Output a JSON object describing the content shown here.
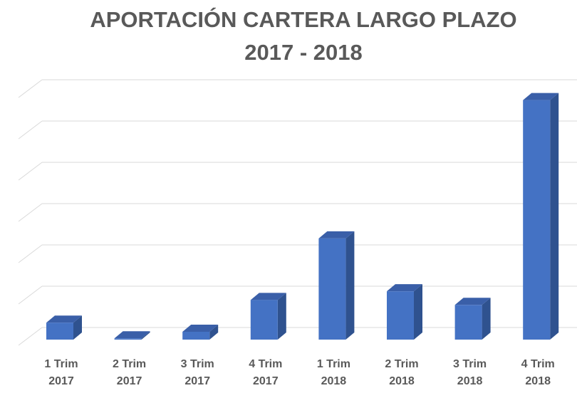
{
  "chart_data": {
    "type": "bar",
    "style": "3d-column",
    "title": "APORTACIÓN CARTERA LARGO PLAZO",
    "subtitle": "2017  - 2018",
    "categories": [
      [
        "1 Trim",
        "2017"
      ],
      [
        "2 Trim",
        "2017"
      ],
      [
        "3 Trim",
        "2017"
      ],
      [
        "4 Trim",
        "2017"
      ],
      [
        "1 Trim",
        "2018"
      ],
      [
        "2 Trim",
        "2018"
      ],
      [
        "3 Trim",
        "2018"
      ],
      [
        "4 Trim",
        "2018"
      ]
    ],
    "values": [
      0.41,
      0.03,
      0.19,
      0.96,
      2.45,
      1.17,
      0.84,
      5.8
    ],
    "value_units": "gridline units (no axis labels shown)",
    "ylim": [
      0,
      6
    ],
    "grid": true,
    "xlabel": "",
    "ylabel": "",
    "colors": {
      "front": "#4472c4",
      "side": "#2f528f",
      "top": "#3a5fa8",
      "grid": "#d9d9d9",
      "text": "#595959"
    }
  }
}
